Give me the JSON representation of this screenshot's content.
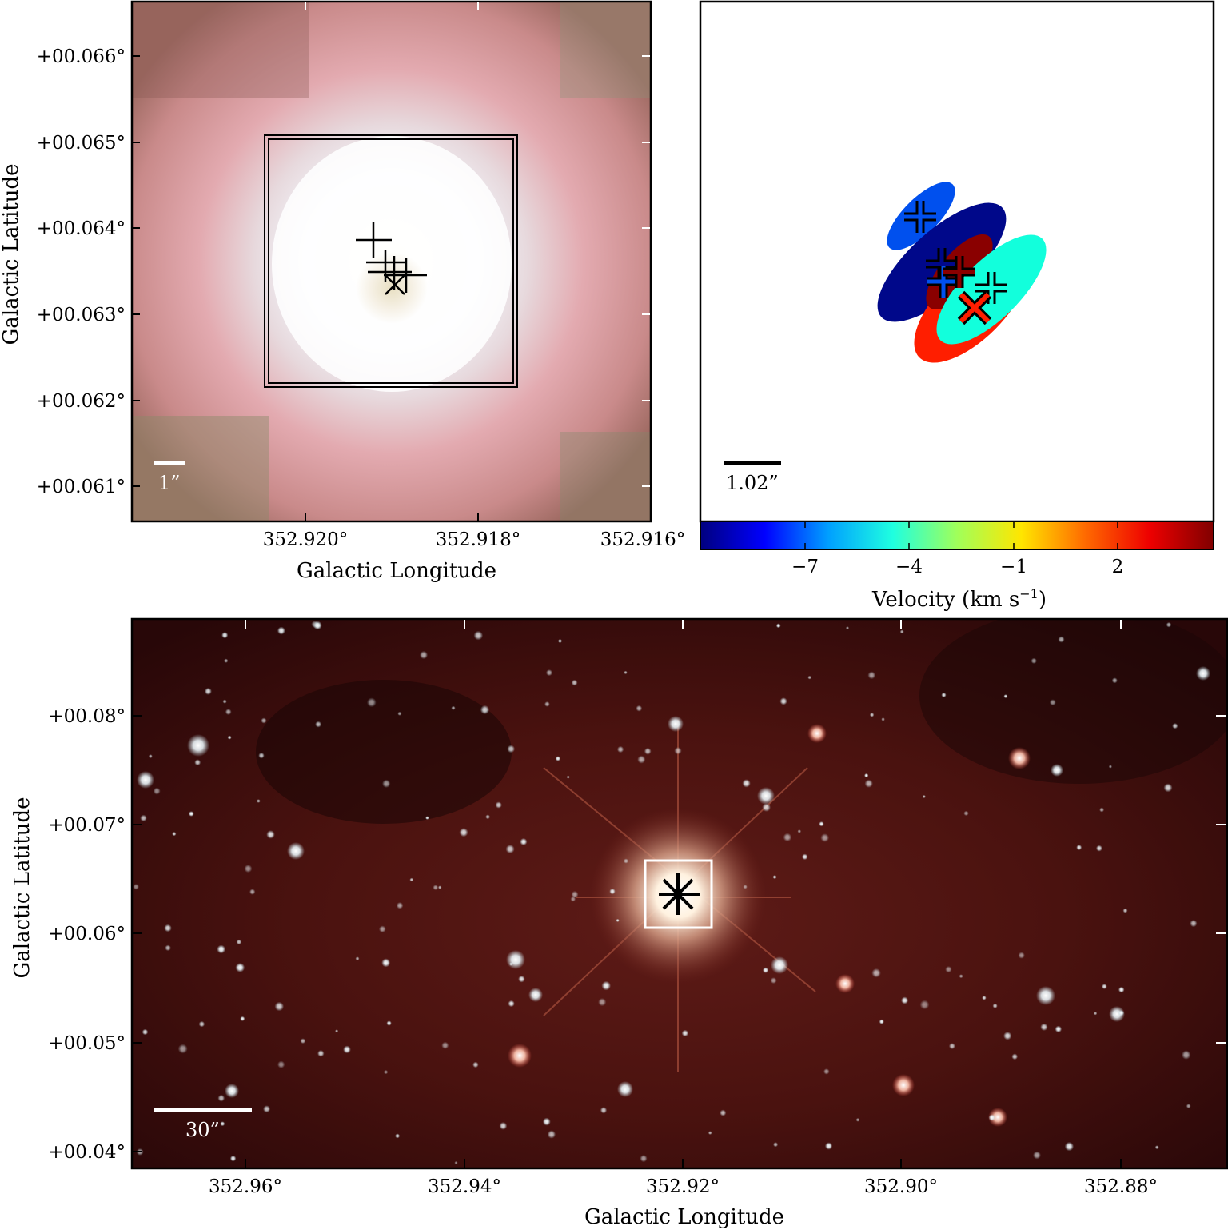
{
  "panels": {
    "top_left": {
      "x_ticks": [
        "352.920°",
        "352.918°",
        "352.916°"
      ],
      "y_ticks": [
        "+00.066°",
        "+00.065°",
        "+00.064°",
        "+00.063°",
        "+00.062°",
        "+00.061°"
      ],
      "xlabel": "Galactic Longitude",
      "ylabel": "Galactic Latitude",
      "scale_bar_label": "1”"
    },
    "top_right": {
      "scale_bar_label": "1.02”",
      "colorbar": {
        "ticks": [
          "−7",
          "−4",
          "−1",
          "2"
        ],
        "label_main": "Velocity (km s",
        "label_sup": "−1",
        "label_close": ")"
      }
    },
    "bottom": {
      "x_ticks": [
        "352.96°",
        "352.94°",
        "352.92°",
        "352.90°",
        "352.88°"
      ],
      "y_ticks": [
        "+00.08°",
        "+00.07°",
        "+00.06°",
        "+00.05°",
        "+00.04°"
      ],
      "xlabel": "Galactic Longitude",
      "ylabel": "Galactic Latitude",
      "scale_bar_label": "30”"
    }
  },
  "velocity_components": [
    {
      "velocity_kms": -6.5,
      "color": "#0055ee",
      "marker": "plus"
    },
    {
      "velocity_kms": -8.5,
      "color": "#000a8a",
      "marker": "plus"
    },
    {
      "velocity_kms": 3.2,
      "color": "#8a0000",
      "marker": "plus"
    },
    {
      "velocity_kms": 1.6,
      "color": "#ff1e00",
      "marker": "x"
    },
    {
      "velocity_kms": -3.2,
      "color": "#11ffdd",
      "marker": "plus"
    }
  ],
  "colors": {
    "colormap": [
      "#00007f",
      "#0000ff",
      "#00a0ff",
      "#1fffe0",
      "#a0ff5a",
      "#ffe600",
      "#ff6a00",
      "#ee0000",
      "#800000"
    ]
  }
}
